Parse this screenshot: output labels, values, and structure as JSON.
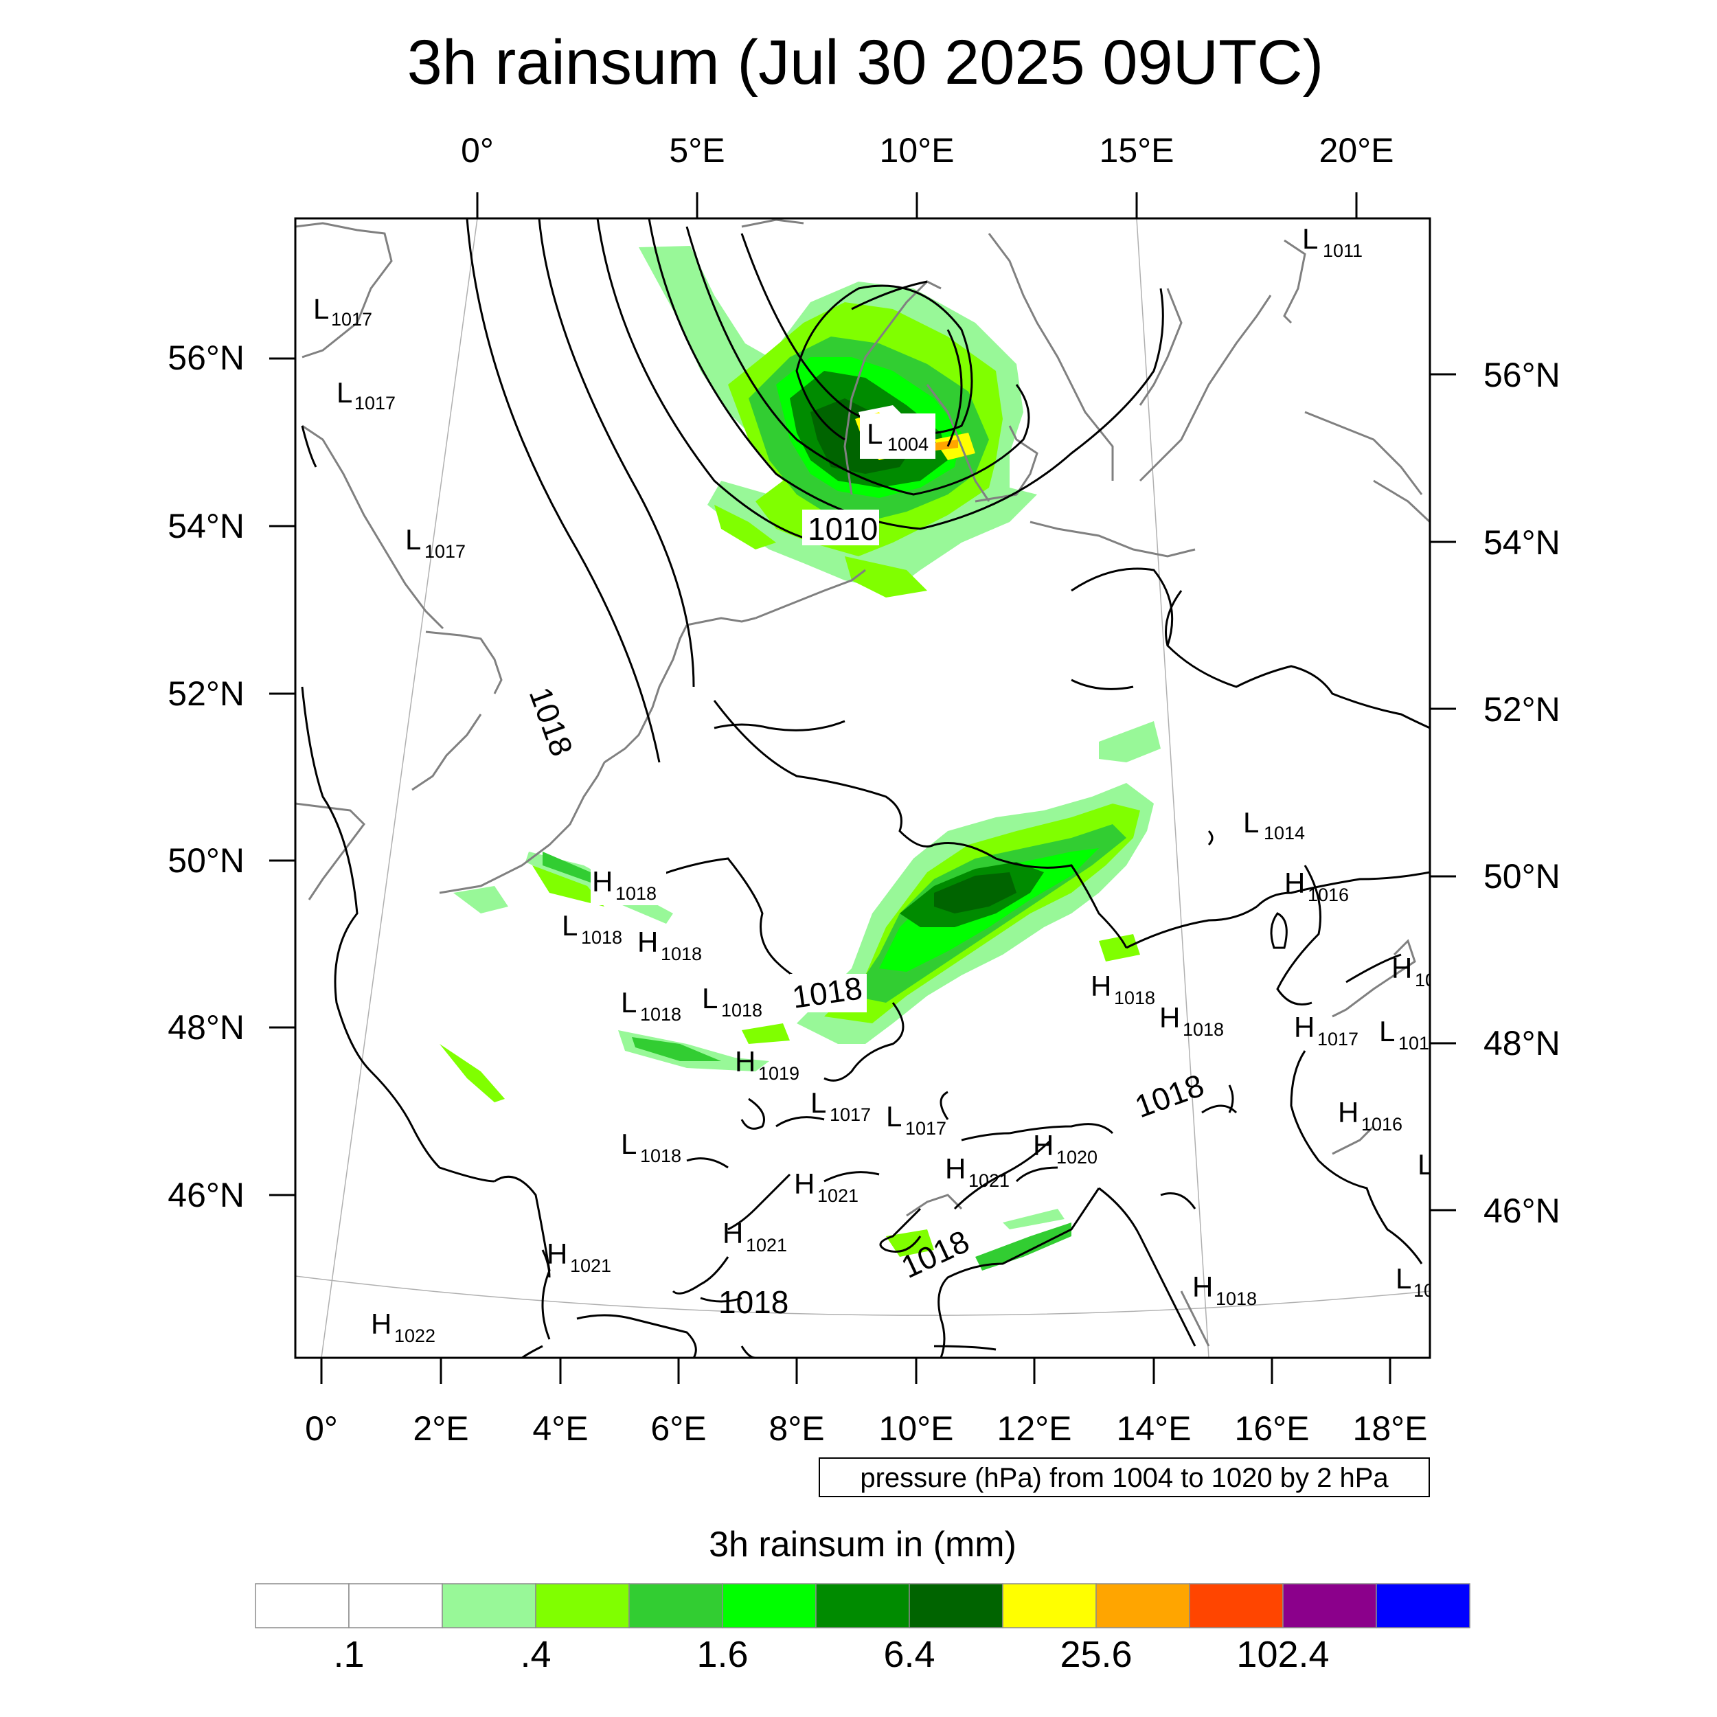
{
  "title": "3h rainsum (Jul 30 2025 09UTC)",
  "top_lon_labels": [
    "0°",
    "5°E",
    "10°E",
    "15°E",
    "20°E"
  ],
  "bottom_lon_labels": [
    "0°",
    "2°E",
    "4°E",
    "6°E",
    "8°E",
    "10°E",
    "12°E",
    "14°E",
    "16°E",
    "18°E"
  ],
  "left_lat_labels": [
    "56°N",
    "54°N",
    "52°N",
    "50°N",
    "48°N",
    "46°N"
  ],
  "right_lat_labels": [
    "56°N",
    "54°N",
    "52°N",
    "50°N",
    "48°N",
    "46°N"
  ],
  "isobar_labels": [
    "1010",
    "1018",
    "1018",
    "1018",
    "1018",
    "1018"
  ],
  "pressure_systems": [
    {
      "type": "L",
      "value": "1011"
    },
    {
      "type": "L",
      "value": "1017"
    },
    {
      "type": "L",
      "value": "1017"
    },
    {
      "type": "L",
      "value": "1017"
    },
    {
      "type": "L",
      "value": "1004"
    },
    {
      "type": "L",
      "value": "1014"
    },
    {
      "type": "H",
      "value": "1016"
    },
    {
      "type": "H",
      "value": "1018"
    },
    {
      "type": "L",
      "value": "1018"
    },
    {
      "type": "H",
      "value": "1018"
    },
    {
      "type": "L",
      "value": "1018"
    },
    {
      "type": "L",
      "value": "1018"
    },
    {
      "type": "H",
      "value": "1019"
    },
    {
      "type": "H",
      "value": "1018"
    },
    {
      "type": "H",
      "value": "1018"
    },
    {
      "type": "H",
      "value": "1017"
    },
    {
      "type": "L",
      "value": "101"
    },
    {
      "type": "H",
      "value": "10"
    },
    {
      "type": "L",
      "value": "1017"
    },
    {
      "type": "L",
      "value": "1017"
    },
    {
      "type": "H",
      "value": "1016"
    },
    {
      "type": "L",
      "value": "1018"
    },
    {
      "type": "H",
      "value": "1020"
    },
    {
      "type": "H",
      "value": "1021"
    },
    {
      "type": "H",
      "value": "1021"
    },
    {
      "type": "H",
      "value": "1021"
    },
    {
      "type": "H",
      "value": "1021"
    },
    {
      "type": "H",
      "value": "1018"
    },
    {
      "type": "H",
      "value": "1022"
    },
    {
      "type": "L",
      "value": "10"
    },
    {
      "type": "L",
      "value": ""
    }
  ],
  "contour_note": "pressure (hPa) from 1004 to 1020 by 2 hPa",
  "legend": {
    "title": "3h rainsum in (mm)",
    "colors": [
      "#ffffff",
      "#ffffff",
      "#98f898",
      "#80ff00",
      "#32cd32",
      "#00ff00",
      "#008b00",
      "#006400",
      "#ffff00",
      "#ffa500",
      "#ff4500",
      "#8b008b",
      "#0000ff"
    ],
    "tick_labels": [
      ".1",
      ".4",
      "1.6",
      "6.4",
      "25.6",
      "102.4"
    ]
  },
  "colors": {
    "coast": "#808080",
    "isobar": "#000000"
  }
}
